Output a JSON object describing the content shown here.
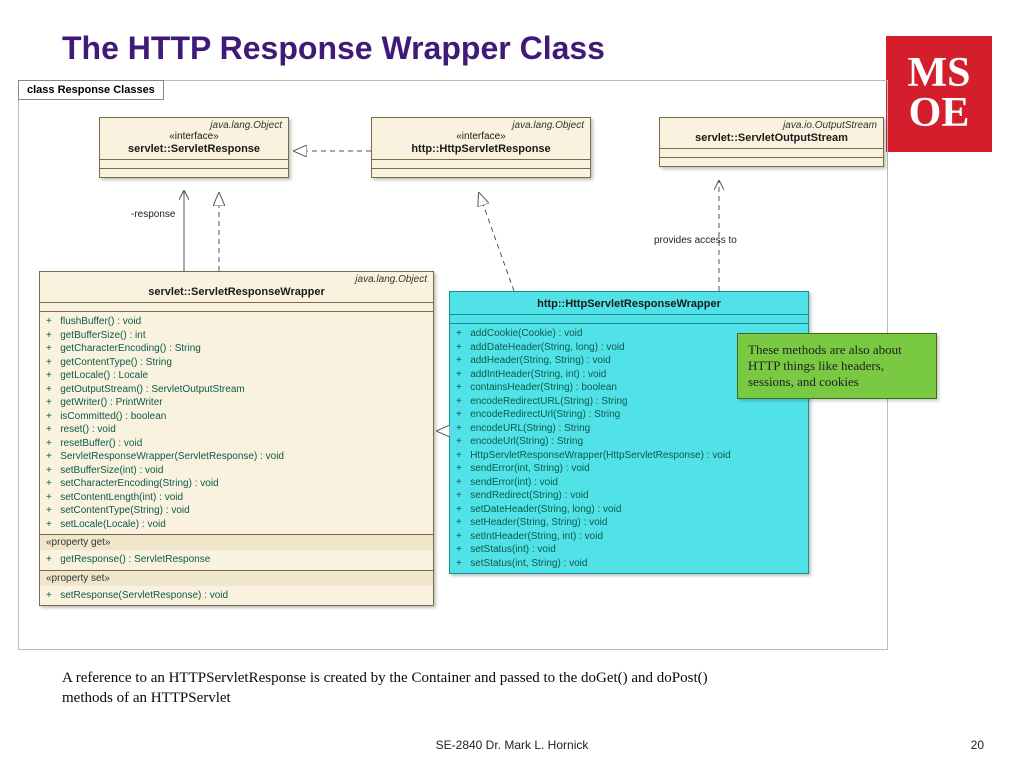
{
  "title": "The HTTP Response Wrapper Class",
  "title_color": "#3f1a78",
  "logo": {
    "line1": "MS",
    "line2": "OE",
    "bg": "#d41e2c"
  },
  "diagram_tab": "class Response Classes",
  "boxes": {
    "servletResponse": {
      "pkg": "java.lang.Object",
      "stereo": "«interface»",
      "name": "servlet::ServletResponse"
    },
    "httpServletResponse": {
      "pkg": "java.lang.Object",
      "stereo": "«interface»",
      "name": "http::HttpServletResponse"
    },
    "servletOutputStream": {
      "pkg": "java.io.OutputStream",
      "name": "servlet::ServletOutputStream"
    },
    "wrapper": {
      "pkg": "java.lang.Object",
      "name": "servlet::ServletResponseWrapper",
      "methods": [
        "flushBuffer() : void",
        "getBufferSize() : int",
        "getCharacterEncoding() : String",
        "getContentType() : String",
        "getLocale() : Locale",
        "getOutputStream() : ServletOutputStream",
        "getWriter() : PrintWriter",
        "isCommitted() : boolean",
        "reset() : void",
        "resetBuffer() : void",
        "ServletResponseWrapper(ServletResponse) : void",
        "setBufferSize(int) : void",
        "setCharacterEncoding(String) : void",
        "setContentLength(int) : void",
        "setContentType(String) : void",
        "setLocale(Locale) : void"
      ],
      "propget_label": "«property get»",
      "propget": [
        "getResponse() : ServletResponse"
      ],
      "propset_label": "«property set»",
      "propset": [
        "setResponse(ServletResponse) : void"
      ]
    },
    "httpWrapper": {
      "name": "http::HttpServletResponseWrapper",
      "methods": [
        "addCookie(Cookie) : void",
        "addDateHeader(String, long) : void",
        "addHeader(String, String) : void",
        "addIntHeader(String, int) : void",
        "containsHeader(String) : boolean",
        "encodeRedirectURL(String) : String",
        "encodeRedirectUrl(String) : String",
        "encodeURL(String) : String",
        "encodeUrl(String) : String",
        "HttpServletResponseWrapper(HttpServletResponse) : void",
        "sendError(int, String) : void",
        "sendError(int) : void",
        "sendRedirect(String) : void",
        "setDateHeader(String, long) : void",
        "setHeader(String, String) : void",
        "setIntHeader(String, int) : void",
        "setStatus(int) : void",
        "setStatus(int, String) : void"
      ]
    }
  },
  "labels": {
    "response": "-response",
    "provides": "provides access to"
  },
  "note": "These methods are also about HTTP things like headers, sessions, and cookies",
  "caption": "A reference to an HTTPServletResponse is created by the Container and passed to the doGet() and doPost() methods of an HTTPServlet",
  "footer": "SE-2840 Dr. Mark L. Hornick",
  "pagenum": "20",
  "colors": {
    "box_bg": "#f9f2df",
    "box_border": "#7a6a4a",
    "cyan_bg": "#51e2e8",
    "cyan_border": "#1a8d92",
    "note_bg": "#7ac943",
    "method_color": "#0c5a4a"
  }
}
